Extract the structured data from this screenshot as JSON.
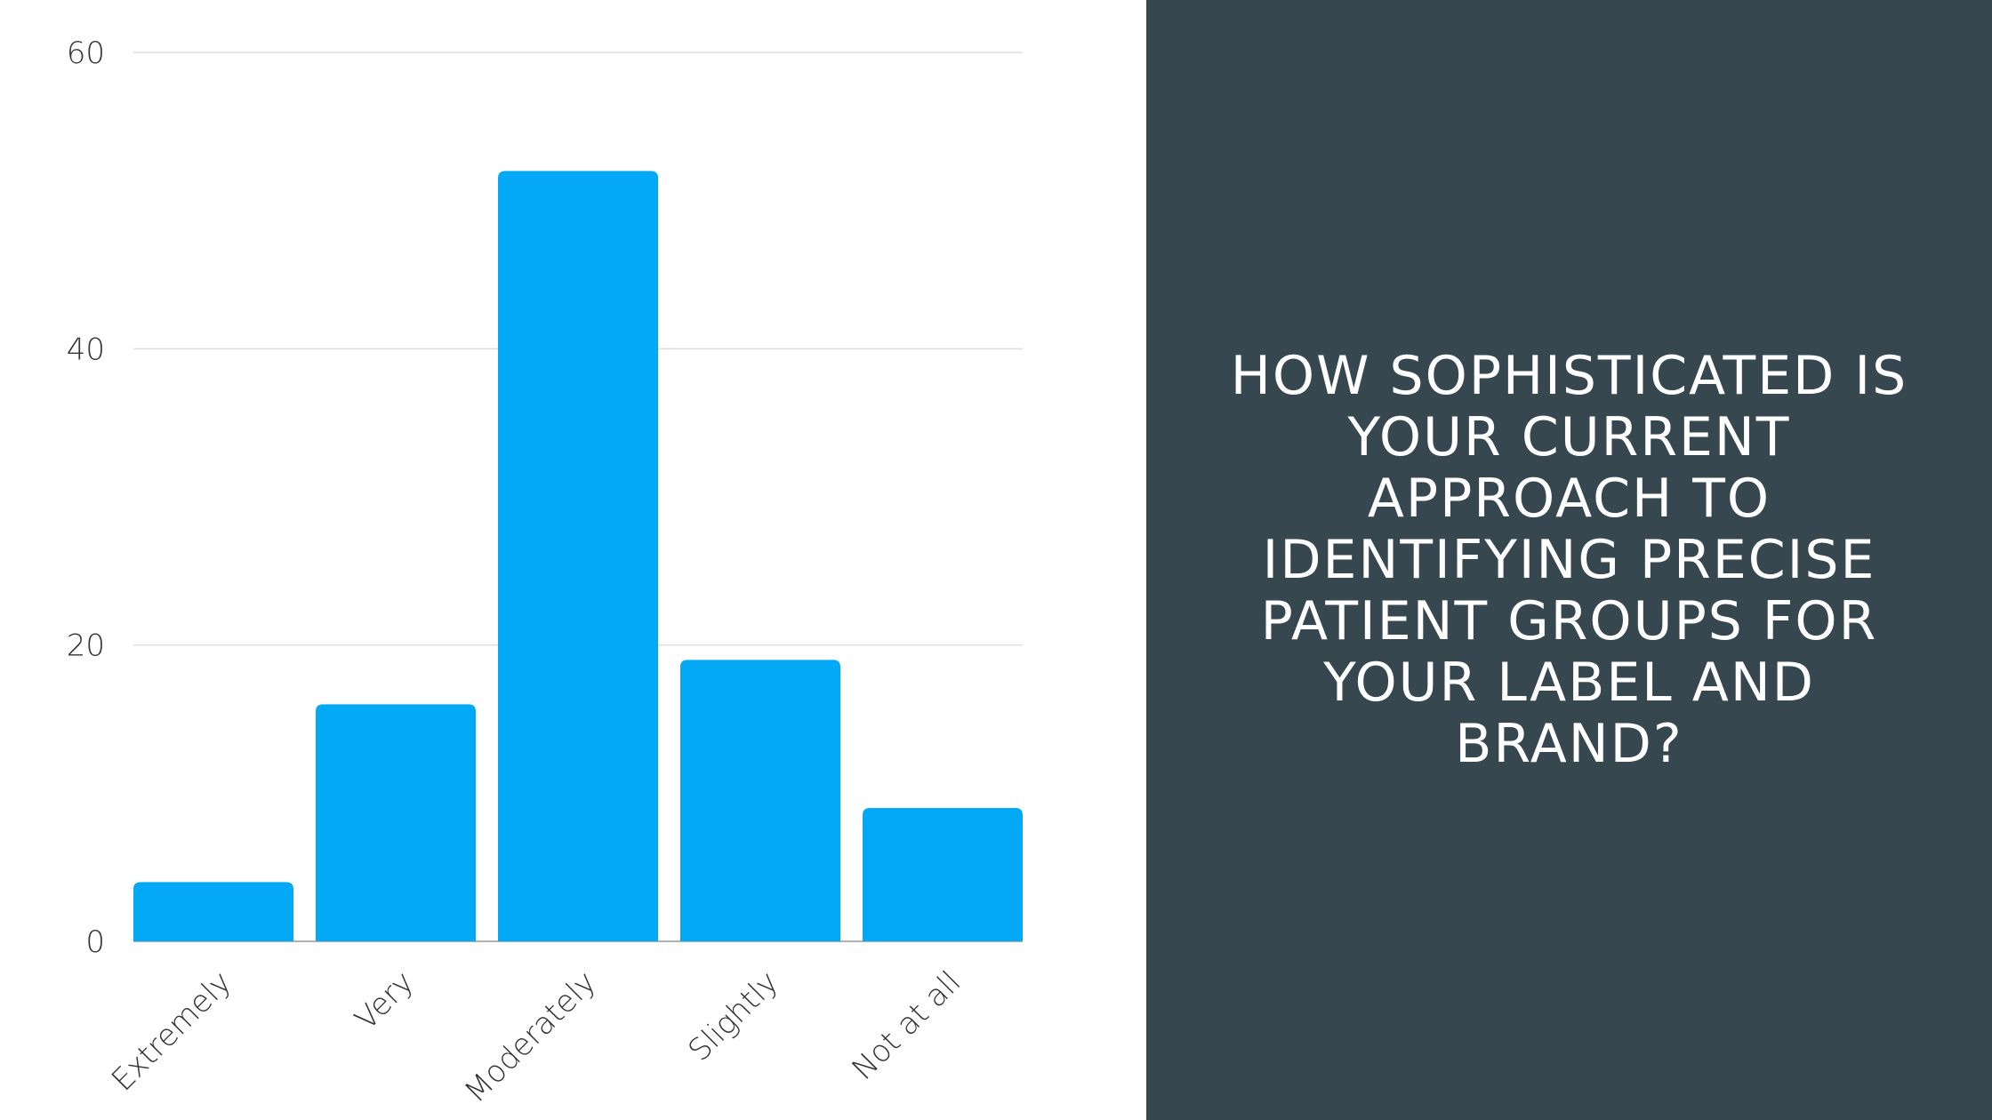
{
  "chart_data": {
    "type": "bar",
    "title": "HOW SOPHISTICATED IS YOUR CURRENT APPROACH TO IDENTIFYING PRECISE PATIENT GROUPS FOR YOUR LABEL AND BRAND?",
    "categories": [
      "Extremely",
      "Very",
      "Moderately",
      "Slightly",
      "Not at all"
    ],
    "values": [
      4,
      16,
      52,
      19,
      9
    ],
    "color": "#03a9f4",
    "ylim": [
      0,
      60
    ],
    "yticks": [
      0,
      20,
      40,
      60
    ],
    "grid": true
  }
}
